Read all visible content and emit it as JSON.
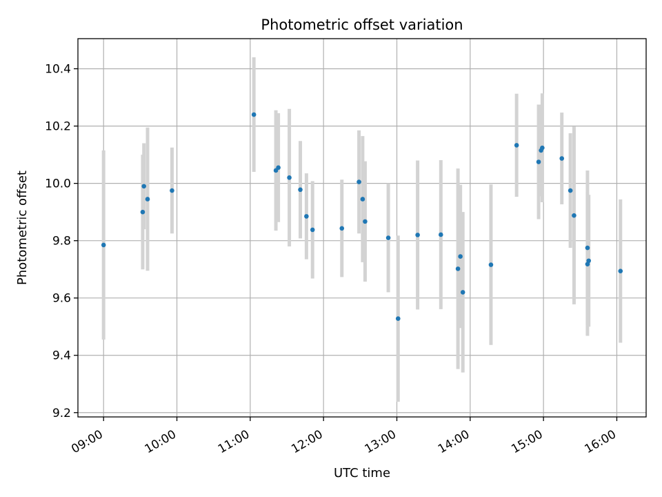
{
  "chart_data": {
    "type": "scatter",
    "title": "Photometric offset variation",
    "xlabel": "UTC time",
    "ylabel": "Photometric offset",
    "x_unit": "HH:MM (UTC)",
    "xlim": [
      "08:39",
      "16:24"
    ],
    "ylim": [
      9.185,
      10.505
    ],
    "x_ticks": [
      "09:00",
      "10:00",
      "11:00",
      "12:00",
      "13:00",
      "14:00",
      "15:00",
      "16:00"
    ],
    "y_ticks": [
      9.2,
      9.4,
      9.6,
      9.8,
      10.0,
      10.2,
      10.4
    ],
    "y_tick_labels": [
      "9.2",
      "9.4",
      "9.6",
      "9.8",
      "10.0",
      "10.2",
      "10.4"
    ],
    "grid": true,
    "colors": {
      "point": "#1f77b4",
      "error_bar": "#d3d3d3",
      "grid": "#b0b0b0"
    },
    "series": [
      {
        "points": [
          {
            "x": "09:00",
            "y": 9.785,
            "err": 0.33
          },
          {
            "x": "09:32",
            "y": 9.9,
            "err": 0.2
          },
          {
            "x": "09:33",
            "y": 9.99,
            "err": 0.15
          },
          {
            "x": "09:36",
            "y": 9.945,
            "err": 0.25
          },
          {
            "x": "09:56",
            "y": 9.975,
            "err": 0.15
          },
          {
            "x": "11:03",
            "y": 10.24,
            "err": 0.2
          },
          {
            "x": "11:21",
            "y": 10.045,
            "err": 0.21
          },
          {
            "x": "11:23",
            "y": 10.055,
            "err": 0.19
          },
          {
            "x": "11:32",
            "y": 10.02,
            "err": 0.24
          },
          {
            "x": "11:41",
            "y": 9.978,
            "err": 0.17
          },
          {
            "x": "11:46",
            "y": 9.885,
            "err": 0.15
          },
          {
            "x": "11:51",
            "y": 9.838,
            "err": 0.17
          },
          {
            "x": "12:15",
            "y": 9.843,
            "err": 0.17
          },
          {
            "x": "12:29",
            "y": 10.005,
            "err": 0.18
          },
          {
            "x": "12:32",
            "y": 9.945,
            "err": 0.22
          },
          {
            "x": "12:34",
            "y": 9.867,
            "err": 0.21
          },
          {
            "x": "12:53",
            "y": 9.81,
            "err": 0.19
          },
          {
            "x": "13:01",
            "y": 9.528,
            "err": 0.29
          },
          {
            "x": "13:17",
            "y": 9.82,
            "err": 0.26
          },
          {
            "x": "13:36",
            "y": 9.821,
            "err": 0.26
          },
          {
            "x": "13:50",
            "y": 9.702,
            "err": 0.35
          },
          {
            "x": "13:52",
            "y": 9.745,
            "err": 0.25
          },
          {
            "x": "13:54",
            "y": 9.62,
            "err": 0.28
          },
          {
            "x": "14:17",
            "y": 9.716,
            "err": 0.28
          },
          {
            "x": "14:38",
            "y": 10.133,
            "err": 0.18
          },
          {
            "x": "14:56",
            "y": 10.075,
            "err": 0.2
          },
          {
            "x": "14:58",
            "y": 10.115,
            "err": 0.16
          },
          {
            "x": "14:59",
            "y": 10.124,
            "err": 0.19
          },
          {
            "x": "15:15",
            "y": 10.087,
            "err": 0.16
          },
          {
            "x": "15:22",
            "y": 9.975,
            "err": 0.2
          },
          {
            "x": "15:25",
            "y": 9.888,
            "err": 0.31
          },
          {
            "x": "15:36",
            "y": 9.775,
            "err": 0.27
          },
          {
            "x": "15:36",
            "y": 9.718,
            "err": 0.25
          },
          {
            "x": "15:37",
            "y": 9.73,
            "err": 0.23
          },
          {
            "x": "16:03",
            "y": 9.694,
            "err": 0.25
          }
        ]
      }
    ]
  }
}
